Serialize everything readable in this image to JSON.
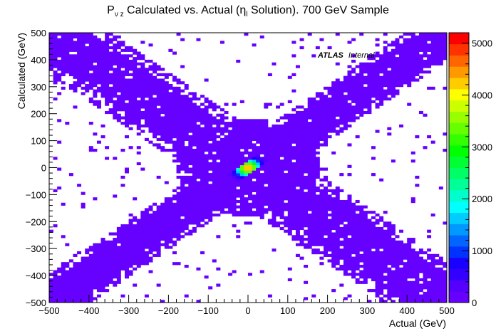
{
  "chart_data": {
    "type": "heatmap",
    "title": {
      "prefix": "P",
      "prefix_sub": "ν z",
      "middle": " Calculated vs. Actual (",
      "eta": "η",
      "eta_sub": "l",
      "suffix": " Solution). 700 GeV Sample"
    },
    "xlabel": "Actual (GeV)",
    "ylabel": "Calculated (GeV)",
    "annotation": {
      "bold": "ATLAS",
      "italic": "Internal"
    },
    "xlim": [
      -500,
      500
    ],
    "ylim": [
      -500,
      500
    ],
    "xbins": 100,
    "ybins": 100,
    "x_ticks": [
      -500,
      -400,
      -300,
      -200,
      -100,
      0,
      100,
      200,
      300,
      400,
      500
    ],
    "y_ticks": [
      -500,
      -400,
      -300,
      -200,
      -100,
      0,
      100,
      200,
      300,
      400,
      500
    ],
    "colorbar": {
      "zlim": [
        0,
        5200
      ],
      "ticks": [
        0,
        1000,
        2000,
        3000,
        4000,
        5000
      ],
      "palette": [
        "#6600ff",
        "#5500ff",
        "#3300ff",
        "#1a00ff",
        "#0033ff",
        "#0066ff",
        "#0099ff",
        "#00ccff",
        "#00ffff",
        "#00ffcc",
        "#00ff99",
        "#00ff66",
        "#00ff33",
        "#00ff00",
        "#33ff00",
        "#66ff00",
        "#99ff00",
        "#ccff00",
        "#ffff00",
        "#ffcc00",
        "#ff9900",
        "#ff6600",
        "#ff3300",
        "#ff0000"
      ]
    },
    "peak": {
      "x": 5,
      "y": 5,
      "value": 4300
    },
    "structure": "two crossing bands: diagonal y = x (dense) and anti-diagonal y = -x (broader), sparse scattered cells elsewhere"
  }
}
